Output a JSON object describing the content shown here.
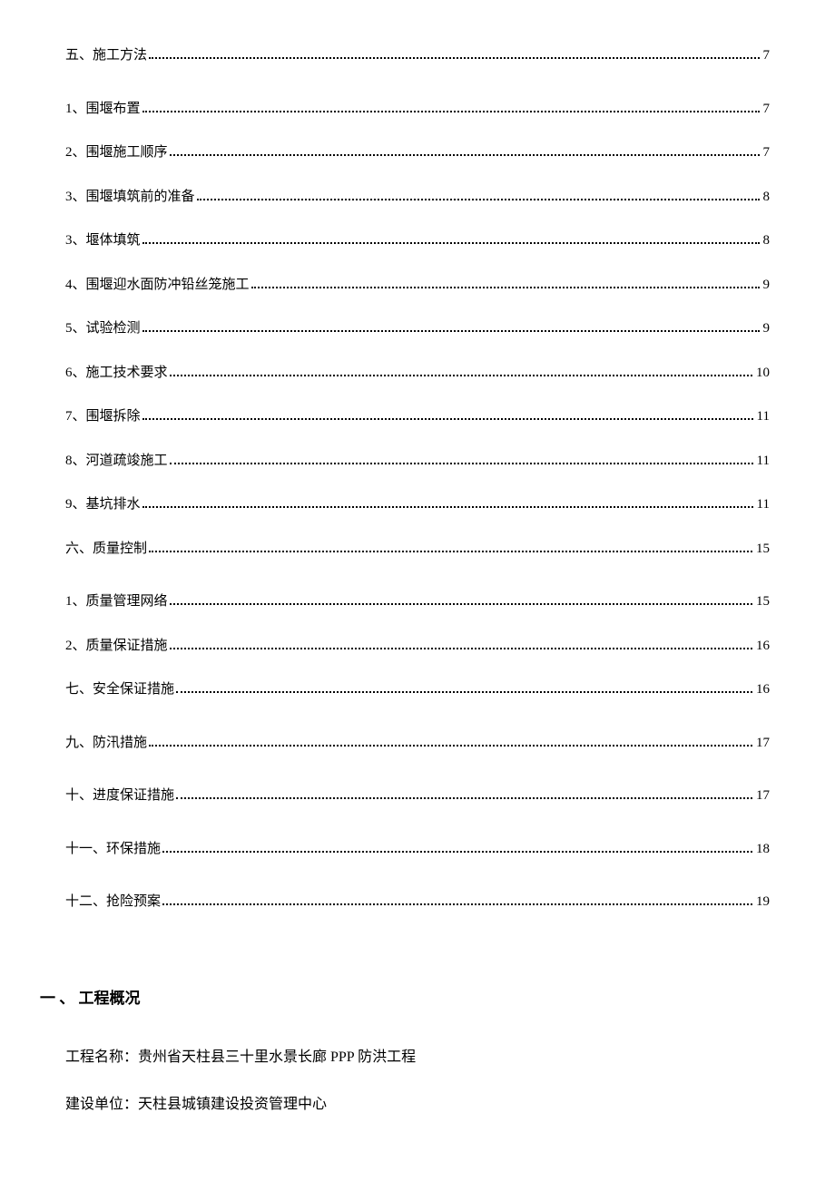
{
  "toc": {
    "entries": [
      {
        "level": 1,
        "title": "五、施工方法",
        "page": "7"
      },
      {
        "level": 2,
        "title": "1、围堰布置",
        "page": "7"
      },
      {
        "level": 2,
        "title": "2、围堰施工顺序",
        "page": "7"
      },
      {
        "level": 2,
        "title": "3、围堰填筑前的准备",
        "page": "8"
      },
      {
        "level": 2,
        "title": "3、堰体填筑",
        "page": "8"
      },
      {
        "level": 2,
        "title": "4、围堰迎水面防冲铅丝笼施工",
        "page": "9"
      },
      {
        "level": 2,
        "title": "5、试验检测",
        "page": "9"
      },
      {
        "level": 2,
        "title": "6、施工技术要求",
        "page": "10"
      },
      {
        "level": 2,
        "title": "7、围堰拆除",
        "page": "11"
      },
      {
        "level": 2,
        "title": "8、河道疏竣施工",
        "page": "11"
      },
      {
        "level": 2,
        "title": "9、基坑排水",
        "page": "11"
      },
      {
        "level": 1,
        "title": "六、质量控制",
        "page": "15"
      },
      {
        "level": 2,
        "title": "1、质量管理网络",
        "page": "15"
      },
      {
        "level": 2,
        "title": "2、质量保证措施",
        "page": "16"
      },
      {
        "level": 1,
        "title": "七、安全保证措施",
        "page": "16"
      },
      {
        "level": 1,
        "title": "九、防汛措施",
        "page": "17"
      },
      {
        "level": 1,
        "title": "十、进度保证措施",
        "page": "17"
      },
      {
        "level": 1,
        "title": "十一、环保措施",
        "page": "18"
      },
      {
        "level": 1,
        "title": "十二、抢险预案",
        "page": "19"
      }
    ]
  },
  "heading": "一 、 工程概况",
  "body": {
    "line1": "工程名称：贵州省天柱县三十里水景长廊 PPP 防洪工程",
    "line2": "建设单位：天柱县城镇建设投资管理中心"
  },
  "style": {
    "background_color": "#ffffff",
    "text_color": "#000000",
    "font_family": "SimSun",
    "toc_fontsize": 15,
    "heading_fontsize": 17,
    "body_fontsize": 16
  }
}
